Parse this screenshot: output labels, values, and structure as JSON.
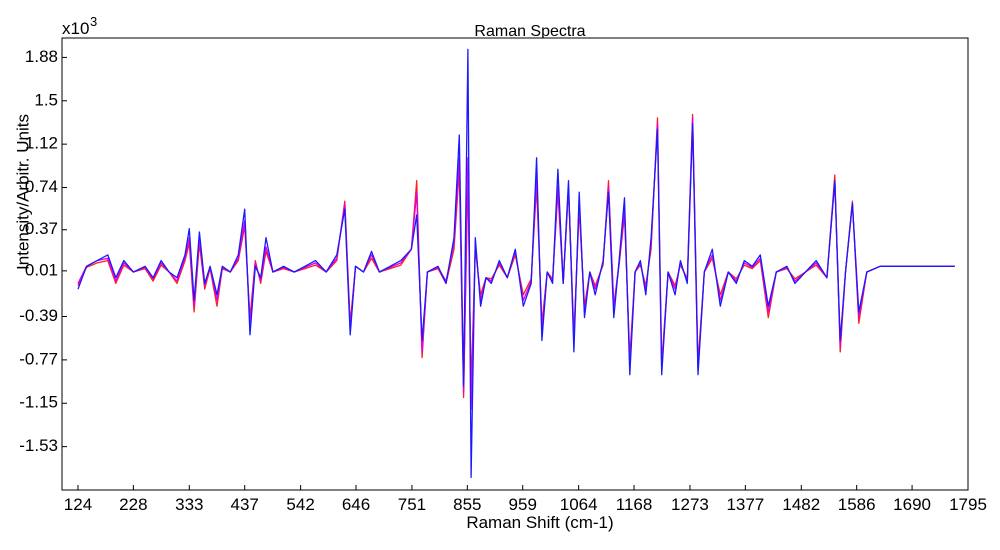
{
  "chart_data": {
    "type": "line",
    "title": "Raman Spectra",
    "x_label": "Raman Shift (cm-1)",
    "y_label": "Intensity/Arbitr. Units",
    "multiplier": {
      "base": "x10",
      "exponent": "3"
    },
    "x": [
      124,
      140,
      160,
      180,
      195,
      210,
      228,
      250,
      265,
      280,
      295,
      310,
      325,
      333,
      342,
      352,
      362,
      372,
      385,
      395,
      410,
      425,
      437,
      447,
      457,
      467,
      477,
      490,
      510,
      530,
      550,
      570,
      590,
      610,
      625,
      635,
      645,
      660,
      675,
      690,
      710,
      730,
      750,
      760,
      770,
      780,
      800,
      815,
      830,
      840,
      848,
      856,
      862,
      870,
      880,
      890,
      900,
      915,
      930,
      945,
      960,
      975,
      985,
      995,
      1005,
      1015,
      1025,
      1035,
      1045,
      1055,
      1065,
      1075,
      1085,
      1095,
      1110,
      1120,
      1130,
      1140,
      1150,
      1160,
      1170,
      1180,
      1190,
      1200,
      1212,
      1220,
      1232,
      1245,
      1255,
      1268,
      1278,
      1288,
      1300,
      1315,
      1330,
      1345,
      1360,
      1375,
      1390,
      1405,
      1420,
      1435,
      1455,
      1470,
      1490,
      1510,
      1530,
      1545,
      1555,
      1565,
      1578,
      1590,
      1605,
      1630,
      1680,
      1730,
      1770
    ],
    "series": [
      {
        "color": "#ff2020",
        "values": [
          -0.12,
          0.04,
          0.08,
          0.1,
          -0.1,
          0.06,
          0.0,
          0.03,
          -0.08,
          0.06,
          0.0,
          -0.1,
          0.1,
          0.25,
          -0.35,
          0.25,
          -0.15,
          0.03,
          -0.3,
          0.03,
          0.0,
          0.1,
          0.4,
          -0.4,
          0.1,
          -0.1,
          0.18,
          0.0,
          0.03,
          0.0,
          0.03,
          0.06,
          0.0,
          0.1,
          0.62,
          -0.45,
          0.05,
          0.0,
          0.12,
          0.0,
          0.03,
          0.06,
          0.2,
          0.8,
          -0.75,
          0.0,
          0.03,
          -0.1,
          0.2,
          0.9,
          -1.1,
          0.85,
          -1.0,
          0.2,
          -0.2,
          -0.05,
          -0.06,
          0.06,
          -0.05,
          0.15,
          -0.2,
          -0.06,
          0.75,
          -0.45,
          0.0,
          -0.06,
          0.7,
          -0.1,
          0.72,
          -0.55,
          0.55,
          -0.3,
          0.0,
          -0.12,
          0.06,
          0.8,
          -0.3,
          0.06,
          0.5,
          -0.75,
          0.0,
          0.06,
          -0.12,
          0.2,
          1.35,
          -0.8,
          0.0,
          -0.12,
          0.06,
          -0.06,
          1.38,
          -0.8,
          0.0,
          0.12,
          -0.2,
          0.0,
          -0.06,
          0.06,
          0.03,
          0.1,
          -0.4,
          0.0,
          0.03,
          -0.06,
          0.0,
          0.06,
          -0.05,
          0.85,
          -0.7,
          0.0,
          0.62,
          -0.45,
          0.0,
          0.05,
          0.05,
          0.05,
          0.05
        ]
      },
      {
        "color": "#e000e0",
        "values": [
          -0.1,
          0.05,
          0.1,
          0.12,
          -0.08,
          0.08,
          0.0,
          0.04,
          -0.06,
          0.08,
          0.0,
          -0.08,
          0.12,
          0.3,
          -0.3,
          0.3,
          -0.12,
          0.04,
          -0.25,
          0.04,
          0.0,
          0.12,
          0.45,
          -0.45,
          0.08,
          -0.08,
          0.22,
          0.0,
          0.04,
          0.0,
          0.04,
          0.08,
          0.0,
          0.12,
          0.6,
          -0.5,
          0.05,
          0.0,
          0.15,
          0.0,
          0.04,
          0.08,
          0.2,
          0.7,
          -0.7,
          0.0,
          0.04,
          -0.08,
          0.25,
          1.0,
          -1.05,
          1.0,
          -1.2,
          0.25,
          -0.25,
          -0.05,
          -0.08,
          0.08,
          -0.05,
          0.18,
          -0.25,
          -0.08,
          0.85,
          -0.5,
          0.0,
          -0.08,
          0.75,
          -0.1,
          0.75,
          -0.6,
          0.6,
          -0.35,
          0.0,
          -0.15,
          0.08,
          0.75,
          -0.3,
          0.08,
          0.55,
          -0.8,
          0.0,
          0.08,
          -0.15,
          0.25,
          1.3,
          -0.85,
          0.0,
          -0.15,
          0.08,
          -0.08,
          1.35,
          -0.85,
          0.0,
          0.15,
          -0.25,
          0.0,
          -0.08,
          0.08,
          0.04,
          0.12,
          -0.35,
          0.0,
          0.04,
          -0.08,
          0.0,
          0.08,
          -0.05,
          0.8,
          -0.65,
          0.0,
          0.6,
          -0.4,
          0.0,
          0.05,
          0.05,
          0.05,
          0.05
        ]
      },
      {
        "color": "#1a1aff",
        "values": [
          -0.15,
          0.05,
          0.1,
          0.15,
          -0.05,
          0.1,
          0.0,
          0.05,
          -0.05,
          0.1,
          0.0,
          -0.05,
          0.15,
          0.38,
          -0.25,
          0.35,
          -0.1,
          0.05,
          -0.2,
          0.05,
          0.0,
          0.15,
          0.55,
          -0.55,
          0.05,
          -0.05,
          0.3,
          0.0,
          0.05,
          0.0,
          0.05,
          0.1,
          0.0,
          0.15,
          0.55,
          -0.55,
          0.05,
          0.0,
          0.18,
          0.0,
          0.05,
          0.1,
          0.2,
          0.5,
          -0.6,
          0.0,
          0.05,
          -0.1,
          0.3,
          1.2,
          -1.0,
          1.95,
          -1.8,
          0.3,
          -0.3,
          -0.05,
          -0.1,
          0.1,
          -0.05,
          0.2,
          -0.3,
          -0.1,
          1.0,
          -0.6,
          0.0,
          -0.1,
          0.9,
          -0.1,
          0.8,
          -0.7,
          0.7,
          -0.4,
          0.0,
          -0.2,
          0.1,
          0.7,
          -0.4,
          0.1,
          0.65,
          -0.9,
          0.0,
          0.1,
          -0.2,
          0.3,
          1.25,
          -0.9,
          0.0,
          -0.2,
          0.1,
          -0.1,
          1.3,
          -0.9,
          0.0,
          0.2,
          -0.3,
          0.0,
          -0.1,
          0.1,
          0.05,
          0.15,
          -0.3,
          0.0,
          0.05,
          -0.1,
          0.0,
          0.1,
          -0.05,
          0.8,
          -0.6,
          0.0,
          0.6,
          -0.35,
          0.0,
          0.05,
          0.05,
          0.05,
          0.05
        ]
      }
    ],
    "xlim": [
      94,
      1795
    ],
    "ylim": [
      -1.91,
      2.05
    ],
    "xticks": [
      124,
      228,
      333,
      437,
      542,
      646,
      751,
      855,
      959,
      1064,
      1168,
      1273,
      1377,
      1482,
      1586,
      1690,
      1795
    ],
    "yticks": [
      1.88,
      1.5,
      1.12,
      0.74,
      0.37,
      0.01,
      -0.39,
      -0.77,
      -1.15,
      -1.53
    ]
  }
}
